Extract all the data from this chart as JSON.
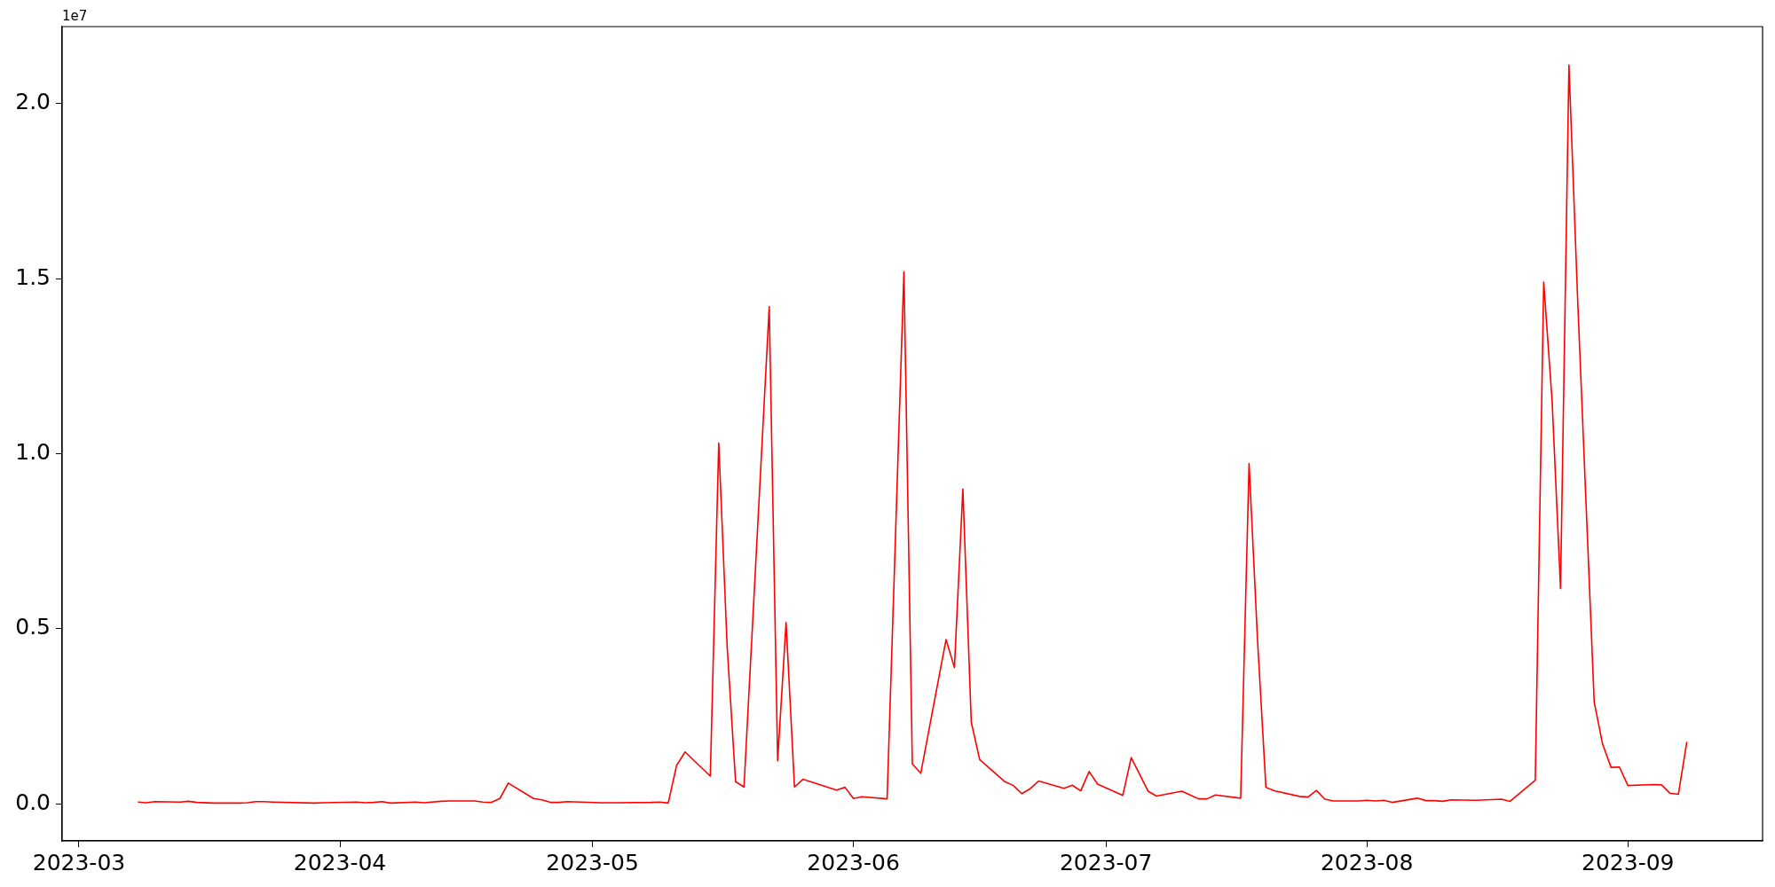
{
  "chart_data": {
    "type": "line",
    "annotations": [
      "1e7"
    ],
    "x": [
      "2023-03-08",
      "2023-03-09",
      "2023-03-10",
      "2023-03-13",
      "2023-03-14",
      "2023-03-15",
      "2023-03-17",
      "2023-03-20",
      "2023-03-21",
      "2023-03-22",
      "2023-03-23",
      "2023-03-24",
      "2023-03-29",
      "2023-03-30",
      "2023-04-03",
      "2023-04-04",
      "2023-04-05",
      "2023-04-06",
      "2023-04-07",
      "2023-04-10",
      "2023-04-11",
      "2023-04-13",
      "2023-04-14",
      "2023-04-17",
      "2023-04-18",
      "2023-04-19",
      "2023-04-20",
      "2023-04-21",
      "2023-04-24",
      "2023-04-25",
      "2023-04-26",
      "2023-04-27",
      "2023-04-28",
      "2023-05-02",
      "2023-05-04",
      "2023-05-08",
      "2023-05-09",
      "2023-05-10",
      "2023-05-11",
      "2023-05-12",
      "2023-05-15",
      "2023-05-16",
      "2023-05-17",
      "2023-05-18",
      "2023-05-19",
      "2023-05-22",
      "2023-05-23",
      "2023-05-24",
      "2023-05-25",
      "2023-05-26",
      "2023-05-30",
      "2023-05-31",
      "2023-06-01",
      "2023-06-02",
      "2023-06-05",
      "2023-06-07",
      "2023-06-08",
      "2023-06-09",
      "2023-06-12",
      "2023-06-13",
      "2023-06-14",
      "2023-06-15",
      "2023-06-16",
      "2023-06-19",
      "2023-06-20",
      "2023-06-21",
      "2023-06-22",
      "2023-06-23",
      "2023-06-26",
      "2023-06-27",
      "2023-06-28",
      "2023-06-29",
      "2023-06-30",
      "2023-07-03",
      "2023-07-04",
      "2023-07-06",
      "2023-07-07",
      "2023-07-10",
      "2023-07-11",
      "2023-07-12",
      "2023-07-13",
      "2023-07-14",
      "2023-07-17",
      "2023-07-18",
      "2023-07-19",
      "2023-07-20",
      "2023-07-21",
      "2023-07-24",
      "2023-07-25",
      "2023-07-26",
      "2023-07-27",
      "2023-07-28",
      "2023-07-31",
      "2023-08-01",
      "2023-08-02",
      "2023-08-03",
      "2023-08-04",
      "2023-08-07",
      "2023-08-08",
      "2023-08-09",
      "2023-08-10",
      "2023-08-11",
      "2023-08-14",
      "2023-08-17",
      "2023-08-18",
      "2023-08-21",
      "2023-08-22",
      "2023-08-23",
      "2023-08-24",
      "2023-08-25",
      "2023-08-26",
      "2023-08-28",
      "2023-08-29",
      "2023-08-30",
      "2023-08-31",
      "2023-09-01",
      "2023-09-04",
      "2023-09-05",
      "2023-09-06",
      "2023-09-07",
      "2023-09-08"
    ],
    "series": [
      {
        "color": "#ff0000",
        "values": [
          0.005,
          0.003,
          0.006,
          0.005,
          0.007,
          0.004,
          0.002,
          0.002,
          0.003,
          0.006,
          0.006,
          0.005,
          0.002,
          0.003,
          0.005,
          0.003,
          0.004,
          0.006,
          0.002,
          0.005,
          0.003,
          0.007,
          0.008,
          0.008,
          0.005,
          0.004,
          0.015,
          0.059,
          0.015,
          0.011,
          0.004,
          0.004,
          0.006,
          0.003,
          0.003,
          0.004,
          0.005,
          0.002,
          0.11,
          0.148,
          0.079,
          1.03,
          0.45,
          0.063,
          0.048,
          1.42,
          0.123,
          0.518,
          0.048,
          0.07,
          0.039,
          0.047,
          0.015,
          0.02,
          0.014,
          1.52,
          0.114,
          0.087,
          0.469,
          0.389,
          0.899,
          0.233,
          0.126,
          0.063,
          0.052,
          0.029,
          0.043,
          0.065,
          0.044,
          0.053,
          0.037,
          0.092,
          0.056,
          0.024,
          0.132,
          0.036,
          0.022,
          0.036,
          0.025,
          0.014,
          0.014,
          0.025,
          0.016,
          0.972,
          0.47,
          0.047,
          0.037,
          0.021,
          0.019,
          0.038,
          0.013,
          0.008,
          0.008,
          0.01,
          0.008,
          0.01,
          0.004,
          0.016,
          0.009,
          0.009,
          0.007,
          0.011,
          0.01,
          0.013,
          0.007,
          0.067,
          1.49,
          1.15,
          0.615,
          2.11,
          1.46,
          0.29,
          0.17,
          0.104,
          0.105,
          0.052,
          0.055,
          0.054,
          0.03,
          0.027,
          0.177
        ]
      }
    ],
    "xlim": [
      "2023-02-27",
      "2023-09-17"
    ],
    "xticks": [
      "2023-03",
      "2023-04",
      "2023-05",
      "2023-06",
      "2023-07",
      "2023-08",
      "2023-09"
    ],
    "ylim": [
      -0.106,
      2.22
    ],
    "yticks": [
      {
        "value": 0,
        "label": "0.0"
      },
      {
        "value": 0.5,
        "label": "0.5"
      },
      {
        "value": 1,
        "label": "1.0"
      },
      {
        "value": 1.5,
        "label": "1.5"
      },
      {
        "value": 2,
        "label": "2.0"
      }
    ],
    "grid": false,
    "legend": false,
    "marker": "none",
    "line_style": "solid"
  }
}
